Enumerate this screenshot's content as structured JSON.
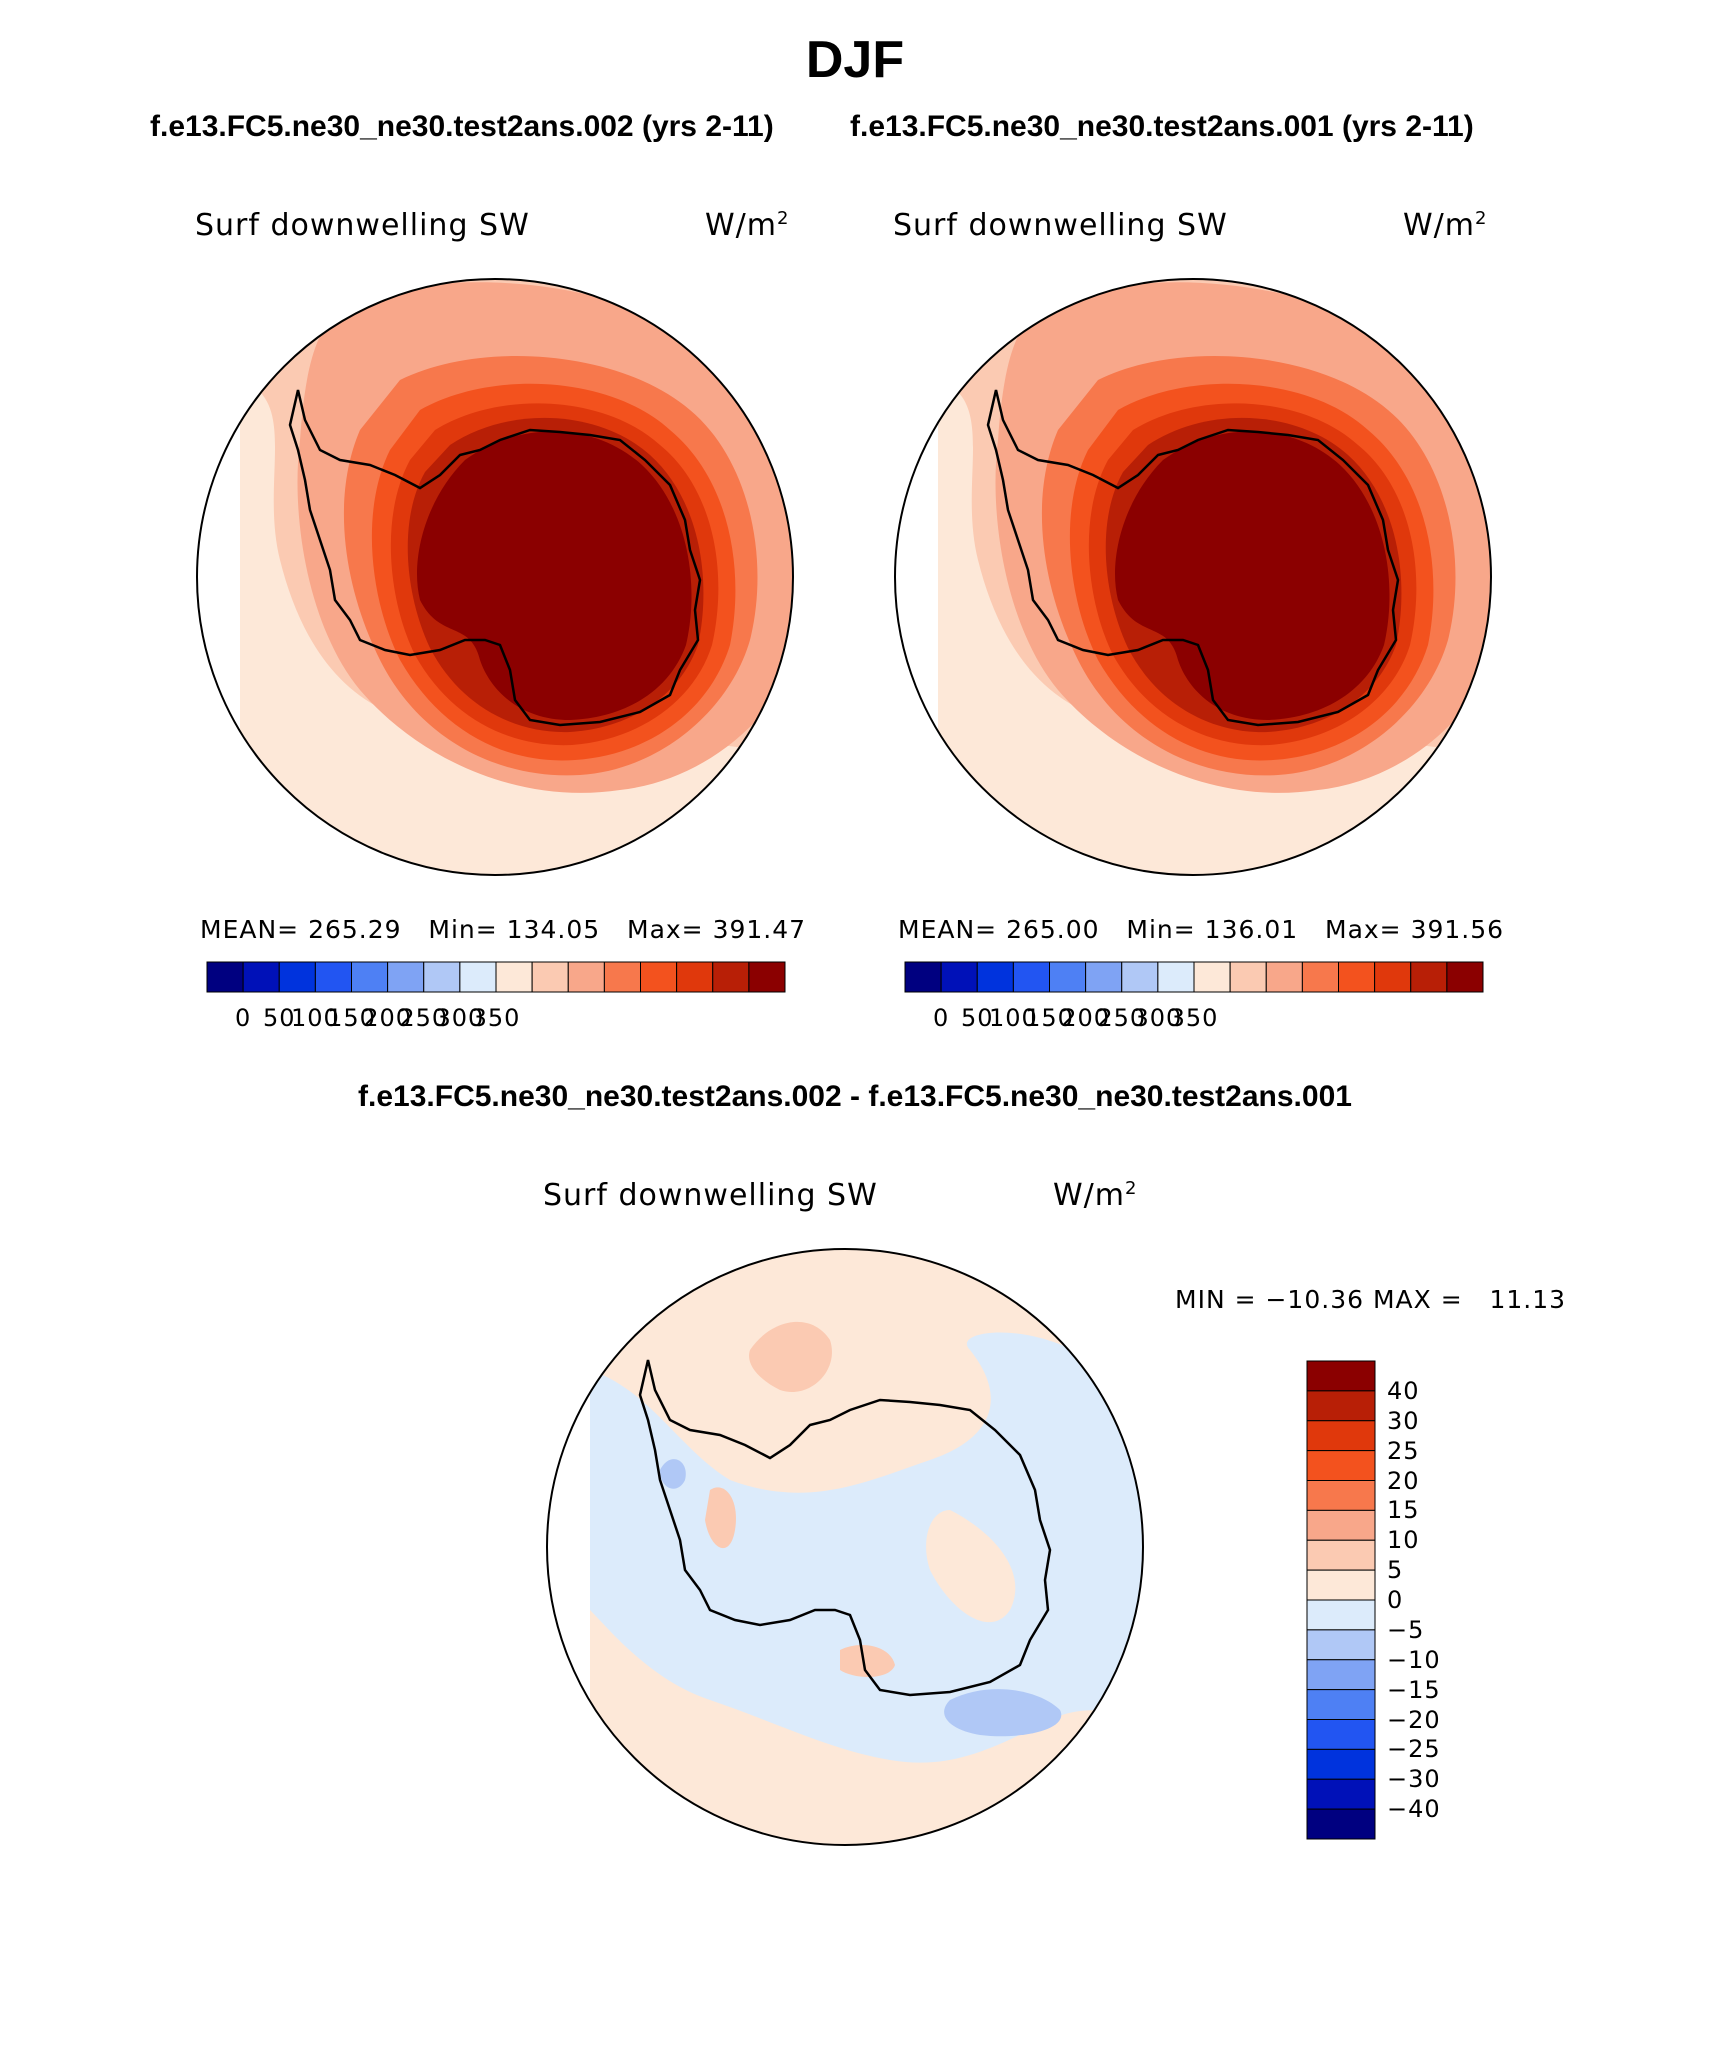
{
  "title": "DJF",
  "panels": [
    {
      "case_title": "f.e13.FC5.ne30_ne30.test2ans.002 (yrs 2-11)",
      "variable": "Surf downwelling SW",
      "units": "W/m",
      "units_sup": "2",
      "stats": {
        "mean_label": "MEAN=",
        "mean": "265.29",
        "min_label": "Min=",
        "min": "134.05",
        "max_label": "Max=",
        "max": "391.47"
      }
    },
    {
      "case_title": "f.e13.FC5.ne30_ne30.test2ans.001 (yrs 2-11)",
      "variable": "Surf downwelling SW",
      "units": "W/m",
      "units_sup": "2",
      "stats": {
        "mean_label": "MEAN=",
        "mean": "265.00",
        "min_label": "Min=",
        "min": "136.01",
        "max_label": "Max=",
        "max": "391.56"
      }
    }
  ],
  "difference": {
    "title": "f.e13.FC5.ne30_ne30.test2ans.002 - f.e13.FC5.ne30_ne30.test2ans.001",
    "variable": "Surf downwelling SW",
    "units": "W/m",
    "units_sup": "2",
    "minmax": "MIN = −10.36 MAX =   11.13"
  },
  "colorbar_main": {
    "tick_labels": [
      "0",
      "50",
      "100",
      "150",
      "200",
      "250",
      "300",
      "350"
    ],
    "colors": [
      "#000080",
      "#0011b8",
      "#0033dd",
      "#2255f2",
      "#4e80f4",
      "#7fa3f4",
      "#b0c8f6",
      "#dcebfb",
      "#fde8d8",
      "#fbcab2",
      "#f8a78a",
      "#f7784c",
      "#f3521e",
      "#e0380c",
      "#b81f06",
      "#8b0000"
    ]
  },
  "colorbar_diff": {
    "tick_labels": [
      "40",
      "30",
      "25",
      "20",
      "15",
      "10",
      "5",
      "0",
      "−5",
      "−10",
      "−15",
      "−20",
      "−25",
      "−30",
      "−40"
    ],
    "colors": [
      "#8b0000",
      "#b81f06",
      "#e0380c",
      "#f3521e",
      "#f7784c",
      "#f8a78a",
      "#fbcab2",
      "#fde8d8",
      "#dcebfb",
      "#b0c8f6",
      "#7fa3f4",
      "#4e80f4",
      "#2255f2",
      "#0033dd",
      "#0011b8",
      "#000080"
    ]
  }
}
